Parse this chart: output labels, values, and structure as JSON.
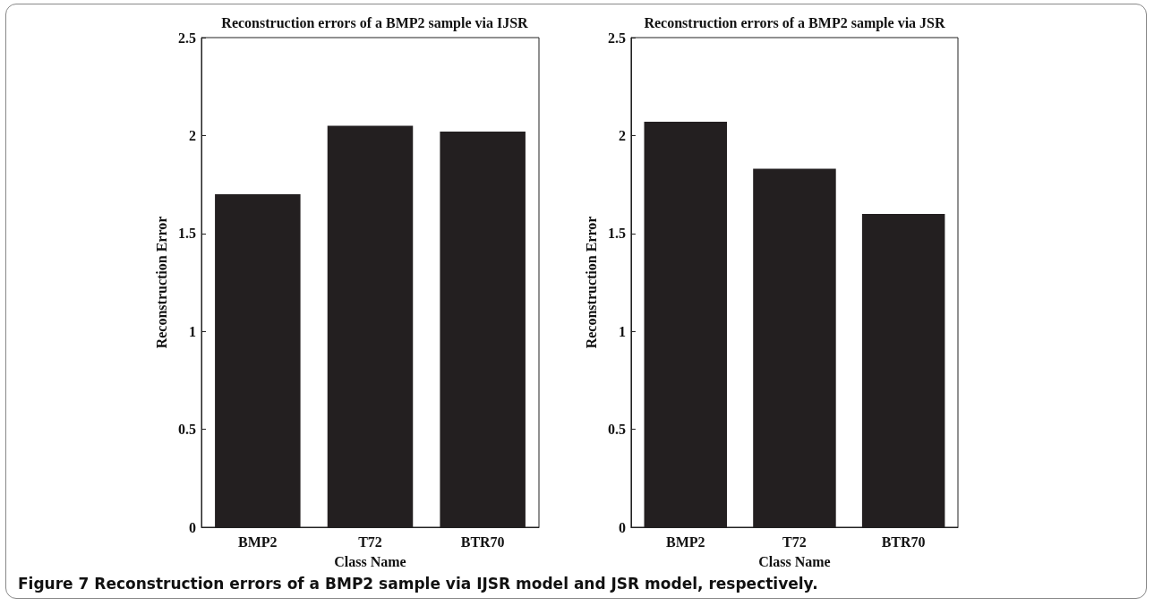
{
  "chart_data": [
    {
      "type": "bar",
      "title": "Reconstruction errors of a BMP2 sample via IJSR",
      "xlabel": "Class Name",
      "ylabel": "Reconstruction Error",
      "categories": [
        "BMP2",
        "T72",
        "BTR70"
      ],
      "values": [
        1.7,
        2.05,
        2.02
      ],
      "color": "#231f20",
      "ylim": [
        0,
        2.5
      ],
      "yticks": [
        0,
        0.5,
        1,
        1.5,
        2,
        2.5
      ],
      "annotations": [
        "Figure 7 Reconstruction errors of a BMP2 sample via IJSR model and JSR model, respectively."
      ]
    },
    {
      "type": "bar",
      "title": "Reconstruction errors of a BMP2 sample via JSR",
      "xlabel": "Class Name",
      "ylabel": "Reconstruction Error",
      "categories": [
        "BMP2",
        "T72",
        "BTR70"
      ],
      "values": [
        2.07,
        1.83,
        1.6
      ],
      "color": "#231f20",
      "ylim": [
        0,
        2.5
      ],
      "yticks": [
        0,
        0.5,
        1,
        1.5,
        2,
        2.5
      ]
    }
  ]
}
